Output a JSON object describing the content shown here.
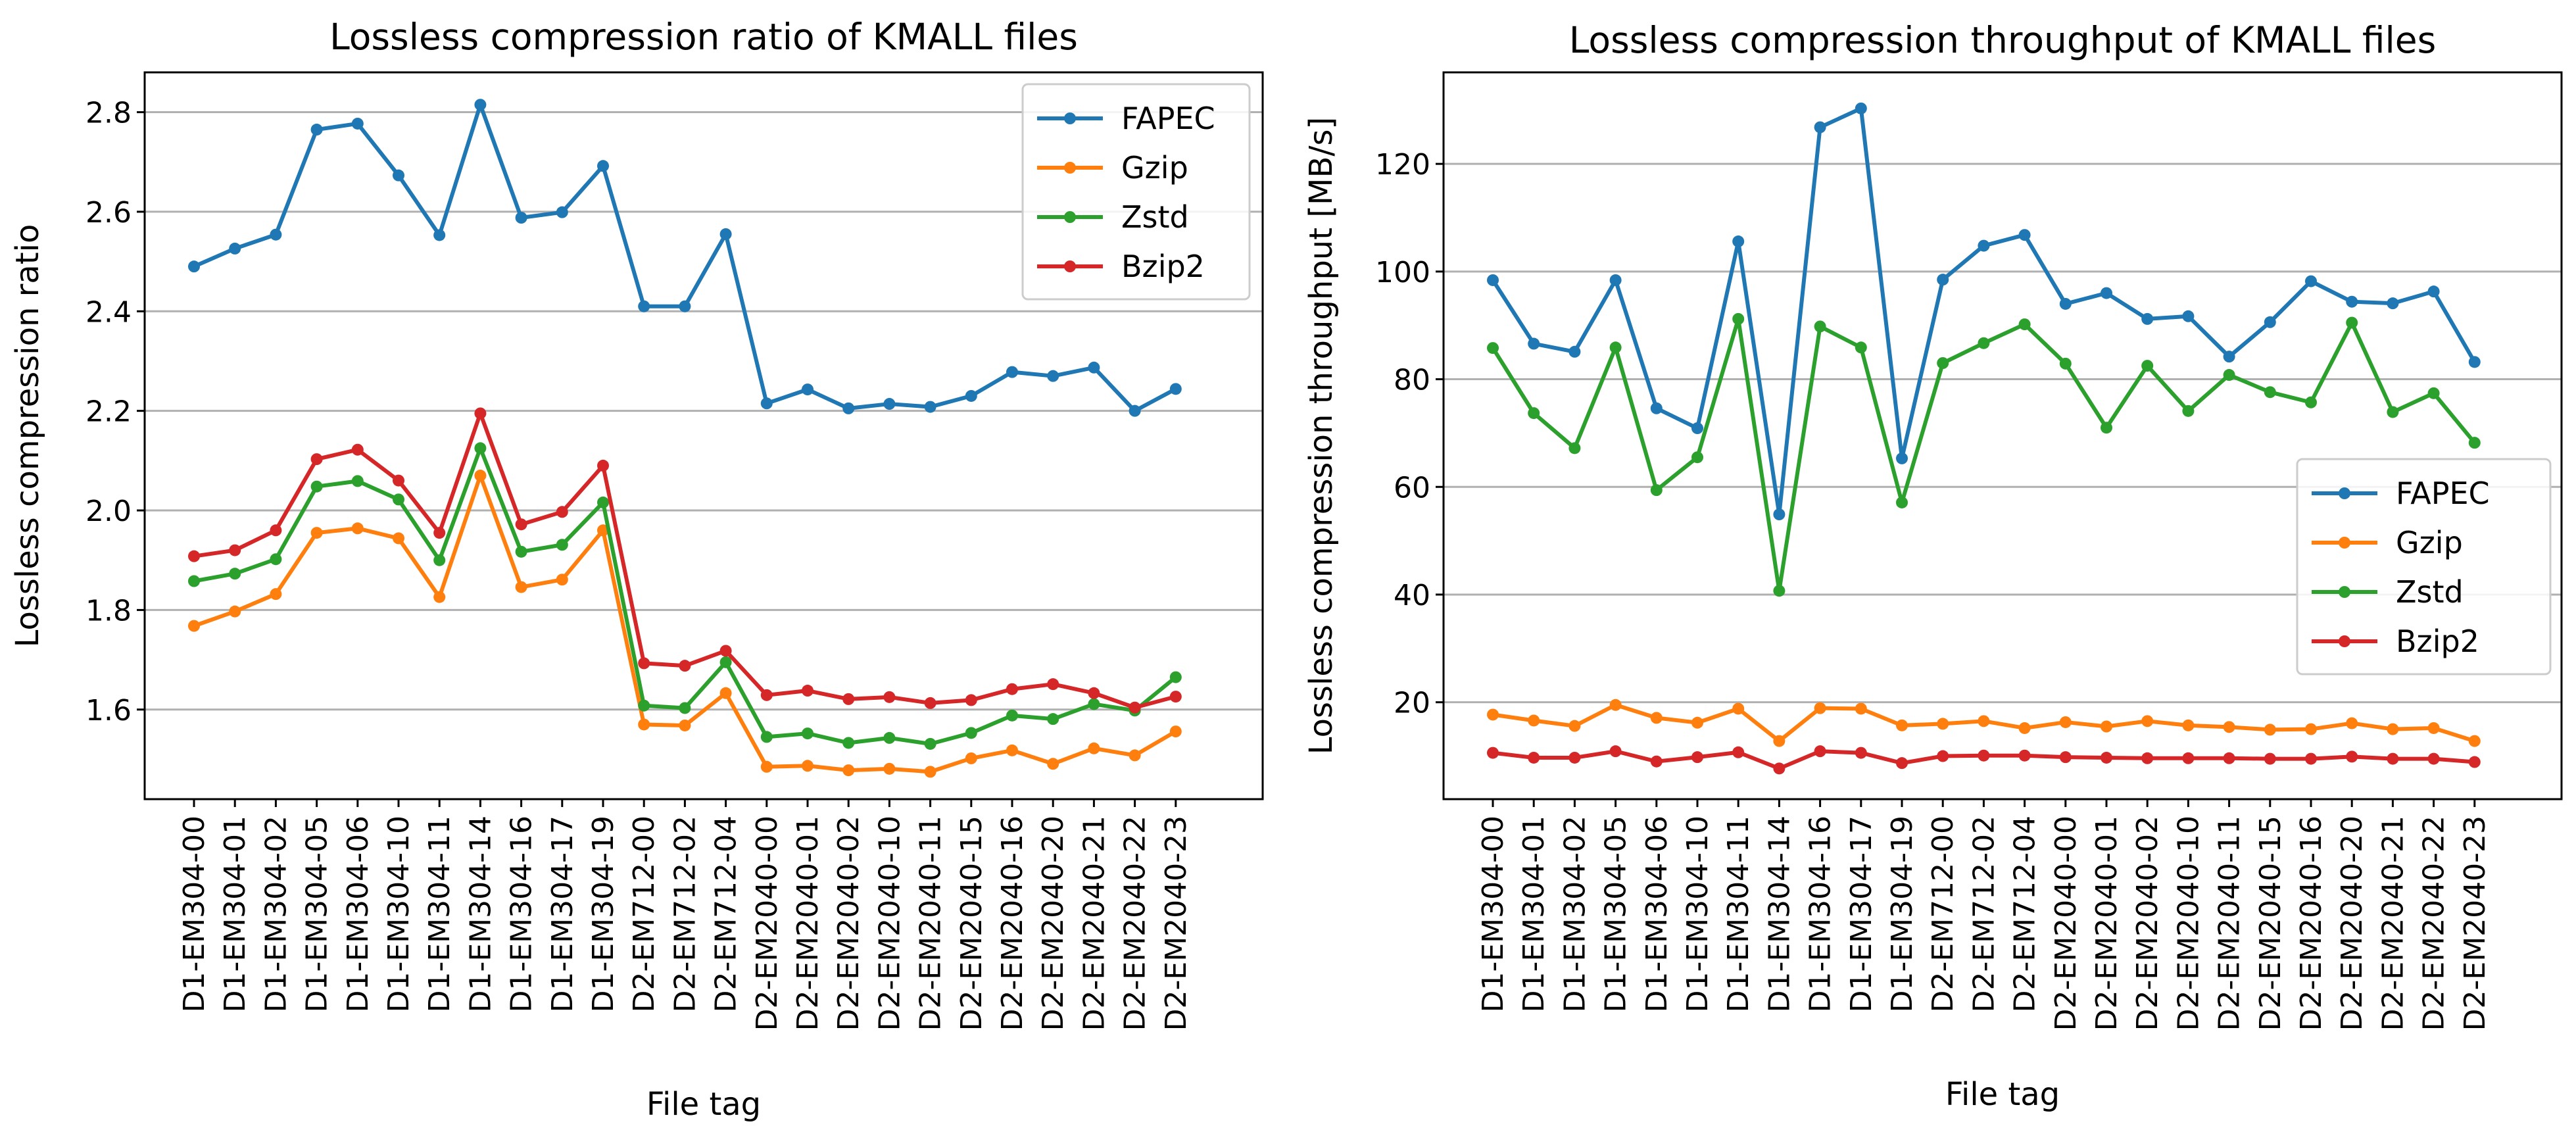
{
  "chart_data": [
    {
      "type": "line",
      "title": "Lossless compression ratio of KMALL files",
      "xlabel": "File tag",
      "ylabel": "Lossless compression ratio",
      "ylim": [
        1.42,
        2.88
      ],
      "yticks": [
        "1.6",
        "1.8",
        "2.0",
        "2.2",
        "2.4",
        "2.6",
        "2.8"
      ],
      "grid": "y",
      "legend_position": "top-right",
      "categories": [
        "D1-EM304-00",
        "D1-EM304-01",
        "D1-EM304-02",
        "D1-EM304-05",
        "D1-EM304-06",
        "D1-EM304-10",
        "D1-EM304-11",
        "D1-EM304-14",
        "D1-EM304-16",
        "D1-EM304-17",
        "D1-EM304-19",
        "D2-EM712-00",
        "D2-EM712-02",
        "D2-EM712-04",
        "D2-EM2040-00",
        "D2-EM2040-01",
        "D2-EM2040-02",
        "D2-EM2040-10",
        "D2-EM2040-11",
        "D2-EM2040-15",
        "D2-EM2040-16",
        "D2-EM2040-20",
        "D2-EM2040-21",
        "D2-EM2040-22",
        "D2-EM2040-23"
      ],
      "series": [
        {
          "name": "FAPEC",
          "color": "#1f77b4",
          "values": [
            2.49,
            2.526,
            2.554,
            2.765,
            2.777,
            2.673,
            2.553,
            2.815,
            2.588,
            2.599,
            2.692,
            2.41,
            2.41,
            2.555,
            2.215,
            2.243,
            2.205,
            2.214,
            2.208,
            2.23,
            2.278,
            2.27,
            2.287,
            2.2,
            2.244
          ]
        },
        {
          "name": "Gzip",
          "color": "#ff7f0e",
          "values": [
            1.768,
            1.797,
            1.832,
            1.955,
            1.964,
            1.944,
            1.826,
            2.07,
            1.846,
            1.861,
            1.96,
            1.57,
            1.568,
            1.633,
            1.485,
            1.487,
            1.478,
            1.481,
            1.475,
            1.502,
            1.518,
            1.491,
            1.522,
            1.508,
            1.556
          ]
        },
        {
          "name": "Zstd",
          "color": "#2ca02c",
          "values": [
            1.858,
            1.873,
            1.902,
            2.048,
            2.059,
            2.022,
            1.9,
            2.125,
            1.917,
            1.931,
            2.016,
            1.608,
            1.603,
            1.695,
            1.545,
            1.552,
            1.533,
            1.543,
            1.531,
            1.553,
            1.588,
            1.581,
            1.611,
            1.598,
            1.665
          ]
        },
        {
          "name": "Bzip2",
          "color": "#d62728",
          "values": [
            1.908,
            1.92,
            1.96,
            2.103,
            2.122,
            2.06,
            1.955,
            2.195,
            1.972,
            1.997,
            2.09,
            1.693,
            1.688,
            1.718,
            1.629,
            1.638,
            1.621,
            1.625,
            1.613,
            1.619,
            1.641,
            1.651,
            1.633,
            1.604,
            1.626
          ]
        }
      ]
    },
    {
      "type": "line",
      "title": "Lossless compression throughput of KMALL files",
      "xlabel": "File tag",
      "ylabel": "Lossless compression throughput [MB/s]",
      "ylim": [
        2,
        137
      ],
      "yticks": [
        "20",
        "40",
        "60",
        "80",
        "100",
        "120"
      ],
      "grid": "y",
      "legend_position": "center-right",
      "categories": [
        "D1-EM304-00",
        "D1-EM304-01",
        "D1-EM304-02",
        "D1-EM304-05",
        "D1-EM304-06",
        "D1-EM304-10",
        "D1-EM304-11",
        "D1-EM304-14",
        "D1-EM304-16",
        "D1-EM304-17",
        "D1-EM304-19",
        "D2-EM712-00",
        "D2-EM712-02",
        "D2-EM712-04",
        "D2-EM2040-00",
        "D2-EM2040-01",
        "D2-EM2040-02",
        "D2-EM2040-10",
        "D2-EM2040-11",
        "D2-EM2040-15",
        "D2-EM2040-16",
        "D2-EM2040-20",
        "D2-EM2040-21",
        "D2-EM2040-22",
        "D2-EM2040-23"
      ],
      "series": [
        {
          "name": "FAPEC",
          "color": "#1f77b4",
          "values": [
            98.4,
            86.6,
            85.1,
            98.4,
            74.6,
            70.9,
            105.6,
            54.9,
            126.8,
            130.3,
            65.3,
            98.5,
            104.8,
            106.8,
            94,
            96,
            91.2,
            91.7,
            84.2,
            90.6,
            98.2,
            94.4,
            94.1,
            96.3,
            83.2
          ]
        },
        {
          "name": "Gzip",
          "color": "#ff7f0e",
          "values": [
            17.7,
            16.6,
            15.6,
            19.5,
            17.1,
            16.2,
            18.8,
            12.8,
            18.9,
            18.8,
            15.7,
            16,
            16.5,
            15.2,
            16.3,
            15.5,
            16.5,
            15.7,
            15.4,
            14.9,
            15,
            16.1,
            15,
            15.2,
            12.8
          ]
        },
        {
          "name": "Zstd",
          "color": "#2ca02c",
          "values": [
            85.8,
            73.7,
            67.2,
            85.9,
            59.4,
            65.5,
            91.2,
            40.7,
            89.8,
            85.9,
            57.1,
            83,
            86.7,
            90.2,
            82.9,
            71,
            82.5,
            74.1,
            80.8,
            77.6,
            75.7,
            90.5,
            73.9,
            77.4,
            68.2
          ]
        },
        {
          "name": "Bzip2",
          "color": "#d62728",
          "values": [
            10.6,
            9.7,
            9.7,
            10.9,
            9,
            9.8,
            10.7,
            7.7,
            10.9,
            10.6,
            8.7,
            10,
            10.1,
            10.1,
            9.8,
            9.7,
            9.6,
            9.6,
            9.6,
            9.5,
            9.5,
            9.9,
            9.5,
            9.5,
            8.9
          ]
        }
      ]
    }
  ]
}
